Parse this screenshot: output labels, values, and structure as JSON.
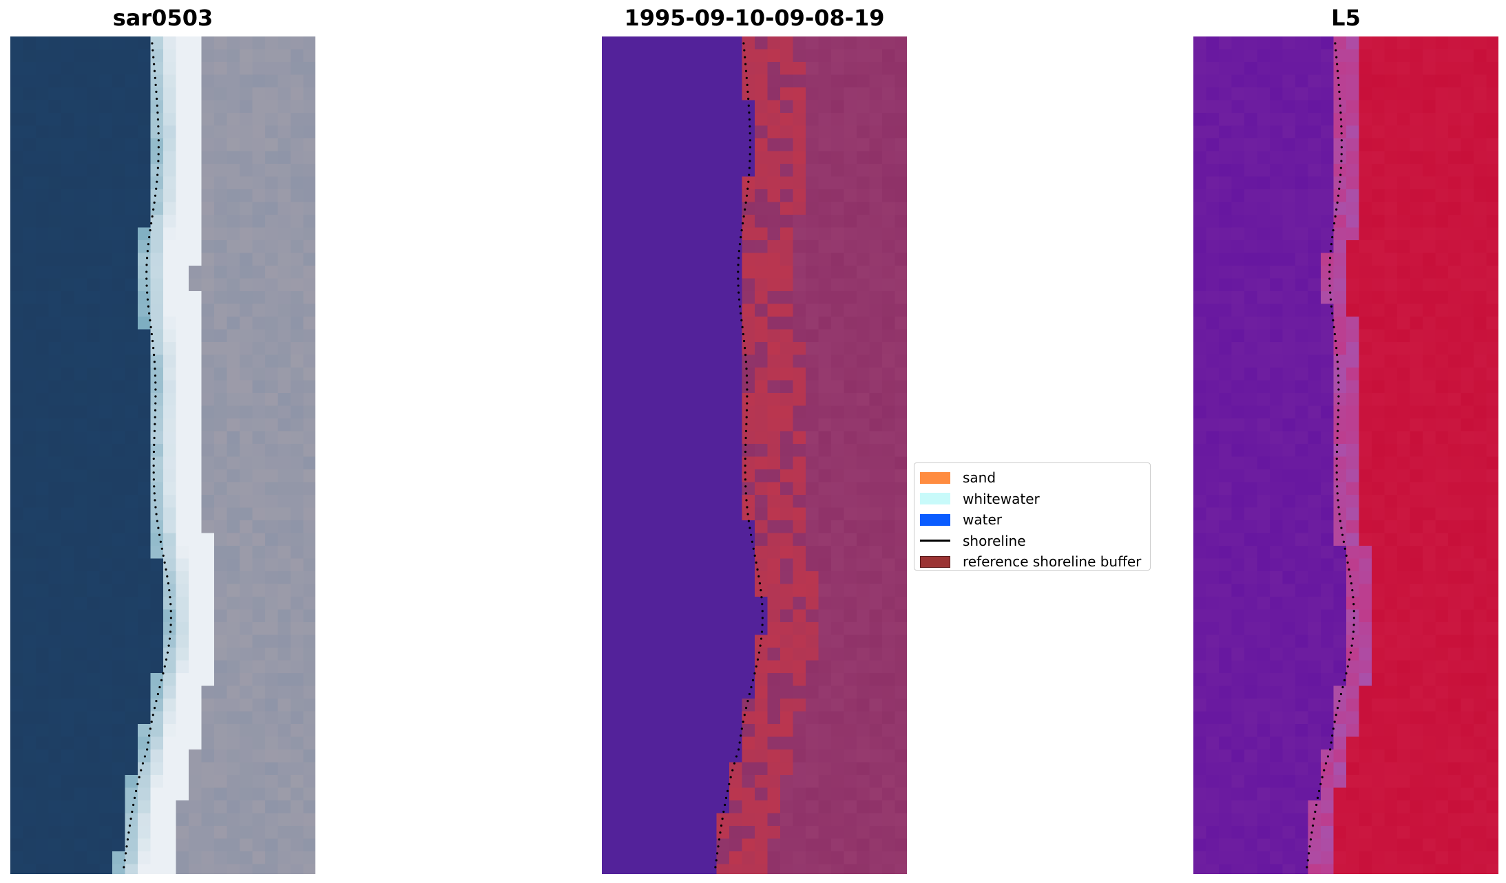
{
  "panels": [
    {
      "title": "sar0503",
      "kind": "rgb"
    },
    {
      "title": "1995-09-10-09-08-19",
      "kind": "classification"
    },
    {
      "title": "L5",
      "kind": "mndwi"
    }
  ],
  "legend": {
    "items": [
      {
        "label": "sand",
        "color": "#ff8c40",
        "icon": "patch"
      },
      {
        "label": "whitewater",
        "color": "#c8fafa",
        "icon": "patch"
      },
      {
        "label": "water",
        "color": "#0a5cff",
        "icon": "patch"
      },
      {
        "label": "shoreline",
        "color": "#000000",
        "icon": "line"
      },
      {
        "label": "reference shoreline buffer",
        "color": "#9b3434",
        "icon": "patch"
      }
    ]
  },
  "colors": {
    "water_rgb": "#1e4066",
    "land_rgb": "#8f95a8",
    "class_water": "#53229a",
    "class_land": "#8f3268",
    "class_buffer": "#c0374c",
    "mndwi_water": "#6f1fa0",
    "mndwi_land": "#c8103a"
  }
}
